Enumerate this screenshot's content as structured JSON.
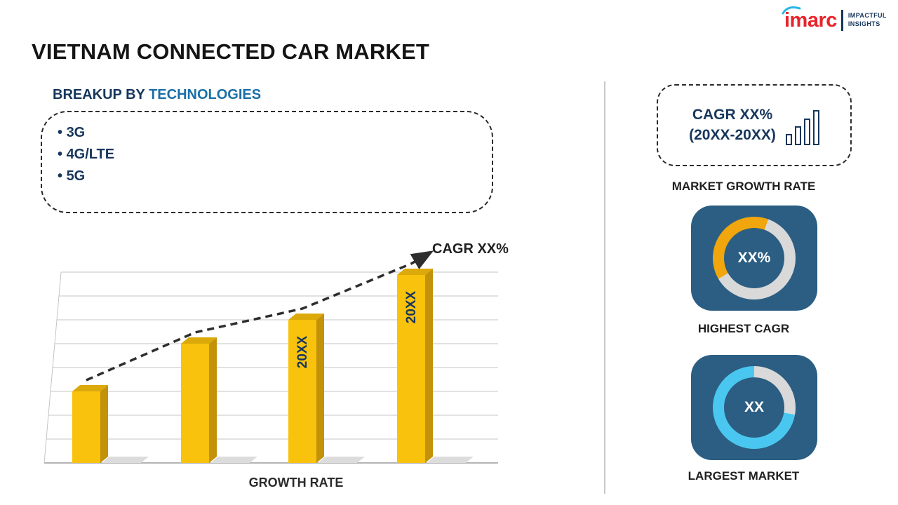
{
  "page": {
    "title": "VIETNAM CONNECTED CAR MARKET"
  },
  "logo": {
    "brand": "imarc",
    "tagline_line1": "IMPACTFUL",
    "tagline_line2": "INSIGHTS"
  },
  "colors": {
    "navy": "#16365c",
    "blue": "#1a6fa8",
    "brand_red": "#e8242b",
    "brand_cyan": "#29b7e8",
    "card_bg": "#2b5e82",
    "bar_yellow": "#f8c20d",
    "amber": "#f0a60c",
    "cyan": "#4ac7f0",
    "ring_base": "#d9d9d9"
  },
  "breakup": {
    "heading_prefix": "BREAKUP BY ",
    "heading_highlight": "TECHNOLOGIES",
    "items": [
      "3G",
      "4G/LTE",
      "5G"
    ]
  },
  "chart_data": {
    "type": "bar",
    "title": "",
    "xlabel": "GROWTH RATE",
    "ylabel": "",
    "categories": [
      "",
      "",
      "20XX",
      "20XX"
    ],
    "values": [
      27,
      45,
      54,
      71
    ],
    "ylim": [
      0,
      72
    ],
    "grid": true,
    "legend": "none",
    "bar_color": "#f8c20d",
    "bar_side_color": "#c2930a",
    "bar_top_color": "#dca90b",
    "label_color": "#16365c",
    "trend_label": "CAGR XX%",
    "trend_style": "dashed-arrow",
    "trend_color": "#2e2e2e"
  },
  "right_panel": {
    "growth_box": {
      "line1": "CAGR XX%",
      "line2": "(20XX-20XX)",
      "icon": "bar-chart-icon",
      "caption": "MARKET GROWTH RATE"
    },
    "highest_cagr": {
      "value": "XX%",
      "caption": "HIGHEST CAGR",
      "ring_color": "#f0a60c",
      "ring_base": "#d9d9d9",
      "segment_start_deg": 240,
      "segment_end_deg": 380
    },
    "largest_market": {
      "value": "XX",
      "caption": "LARGEST MARKET",
      "ring_color": "#4ac7f0",
      "ring_base": "#d9d9d9",
      "segment_start_deg": 100,
      "segment_end_deg": 360
    }
  }
}
